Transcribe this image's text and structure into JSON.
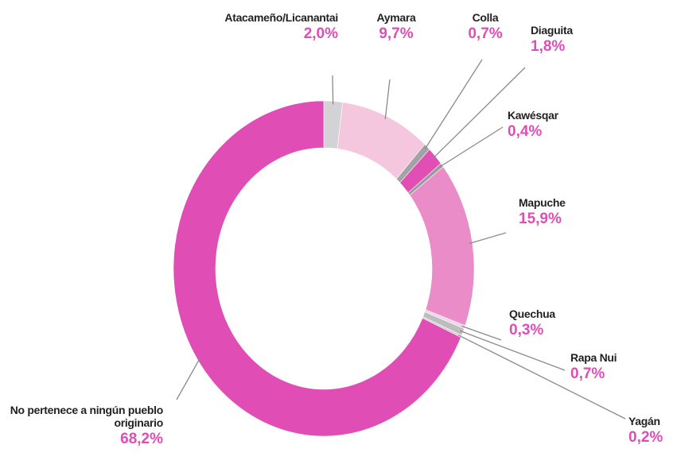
{
  "chart_data": {
    "type": "donut",
    "categories": [
      "Atacameño/Licanantai",
      "Aymara",
      "Colla",
      "Diaguita",
      "Kawésqar",
      "Mapuche",
      "Quechua",
      "Rapa Nui",
      "Yagán",
      "No pertenece a ningún pueblo originario"
    ],
    "values": [
      2.0,
      9.7,
      0.7,
      1.8,
      0.4,
      15.9,
      0.3,
      0.7,
      0.2,
      68.2
    ],
    "value_labels": [
      "2,0%",
      "9,7%",
      "0,7%",
      "1,8%",
      "0,4%",
      "15,9%",
      "0,3%",
      "0,7%",
      "0,2%",
      "68,2%"
    ],
    "colors": [
      "#d3d3d6",
      "#f4c7df",
      "#a3a3a5",
      "#e24fb4",
      "#9c9c9e",
      "#e98cc8",
      "#f1d3e5",
      "#bdbdbf",
      "#cfcfd1",
      "#e04db5"
    ]
  }
}
